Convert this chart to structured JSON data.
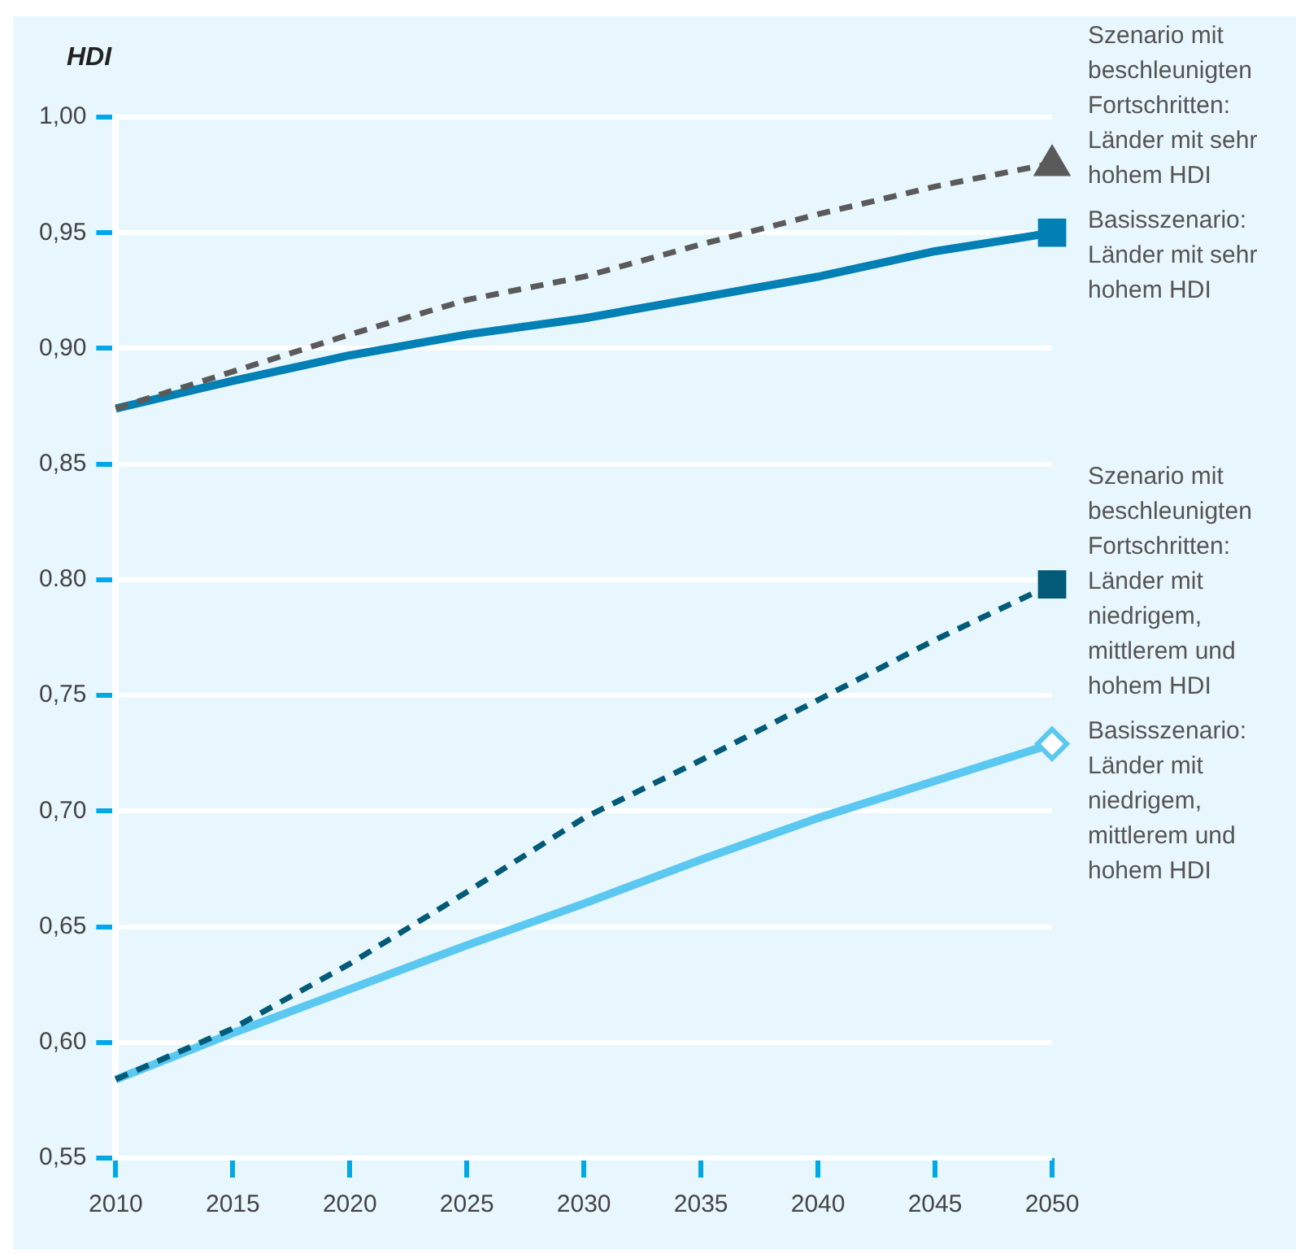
{
  "chart_data": {
    "type": "line",
    "ylabel": "HDI",
    "x": [
      2010,
      2015,
      2020,
      2025,
      2030,
      2035,
      2040,
      2045,
      2050
    ],
    "xlim": [
      2010,
      2050
    ],
    "xticks": [
      2010,
      2015,
      2020,
      2025,
      2030,
      2035,
      2040,
      2045,
      2050
    ],
    "ylim": [
      0.55,
      1.0
    ],
    "yticks": [
      {
        "value": 0.55,
        "label": "0,55"
      },
      {
        "value": 0.6,
        "label": "0,60"
      },
      {
        "value": 0.65,
        "label": "0,65"
      },
      {
        "value": 0.7,
        "label": "0,70"
      },
      {
        "value": 0.75,
        "label": "0,75"
      },
      {
        "value": 0.8,
        "label": "0.80"
      },
      {
        "value": 0.85,
        "label": "0,85"
      },
      {
        "value": 0.9,
        "label": "0,90"
      },
      {
        "value": 0.95,
        "label": "0,95"
      },
      {
        "value": 1.0,
        "label": "1,00"
      }
    ],
    "grid": "y",
    "legend": false,
    "series": [
      {
        "name": "Szenario mit beschleunigten Fortschritten: Länder mit sehr hohem HDI",
        "color": "#5a5a5a",
        "line_style": "dashed",
        "values": [
          0.874,
          0.89,
          0.906,
          0.921,
          0.931,
          0.945,
          0.958,
          0.97,
          0.98
        ]
      },
      {
        "name": "Basisszenario: Länder mit sehr hohem HDI",
        "color": "#0080b4",
        "line_style": "solid",
        "values": [
          0.874,
          0.886,
          0.897,
          0.906,
          0.913,
          0.922,
          0.931,
          0.942,
          0.95
        ]
      },
      {
        "name": "Szenario mit beschleunigten Fortschritten: Länder mit niedrigem, mittlerem und hohem HDI",
        "color": "#005a78",
        "line_style": "dashed",
        "values": [
          0.584,
          0.606,
          0.634,
          0.665,
          0.697,
          0.722,
          0.748,
          0.774,
          0.798
        ]
      },
      {
        "name": "Basisszenario: Länder mit niedrigem, mittlerem und hohem HDI",
        "color": "#5ac8f0",
        "line_style": "solid",
        "values": [
          0.584,
          0.604,
          0.623,
          0.642,
          0.66,
          0.679,
          0.697,
          0.713,
          0.729
        ]
      }
    ]
  }
}
